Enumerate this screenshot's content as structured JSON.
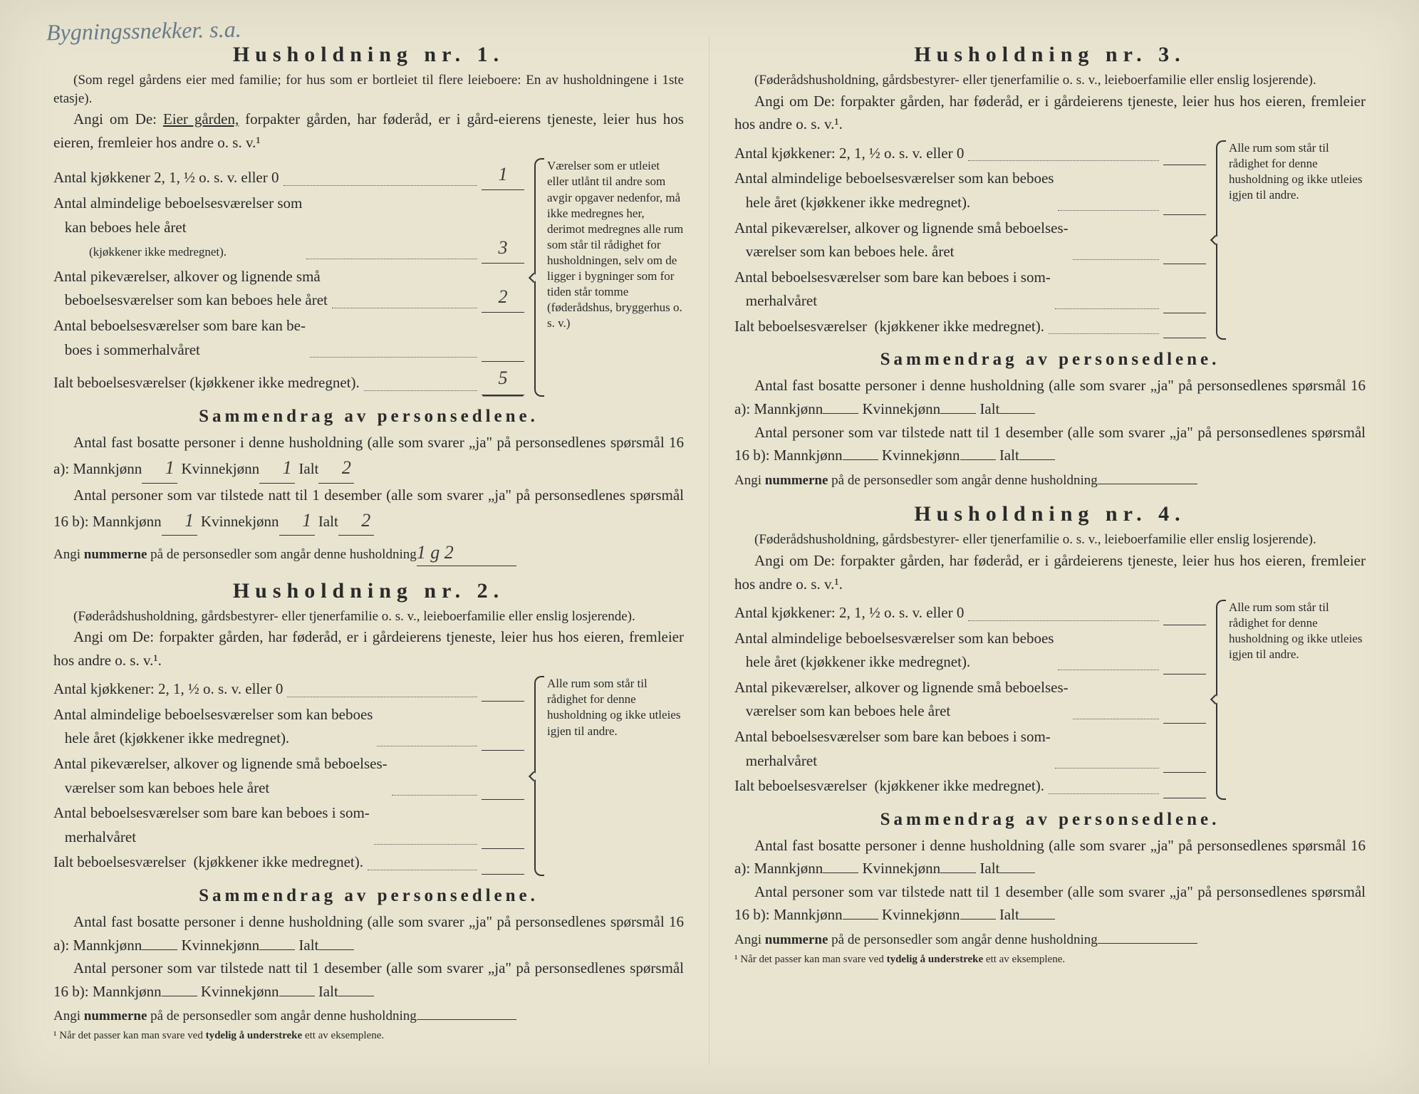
{
  "page_bg": "#e8e4d0",
  "text_color": "#2a2a2a",
  "handwriting_color": "#6b7a8a",
  "top_handwriting": "Bygningssnekker. s.a.",
  "households": [
    {
      "title": "Husholdning nr. 1.",
      "intro": "(Som regel gårdens eier med familie; for hus som er bortleiet til flere leieboere: En av husholdningene i 1ste etasje).",
      "angi_pre": "Angi om De: ",
      "angi_underlined": "Eier gården,",
      "angi_post": " forpakter gården, har føderåd, er i gård-eierens tjeneste, leier hus hos eieren, fremleier hos andre o. s. v.¹",
      "rows": [
        {
          "label": "Antal kjøkkener 2, 1, ½ o. s. v. eller 0",
          "val": "1"
        },
        {
          "label": "Antal almindelige beboelsesværelser som\n   kan beboes hele året",
          "sublabel": "(kjøkkener ikke medregnet).",
          "val": "3"
        },
        {
          "label": "Antal pikeværelser, alkover og lignende små\n   beboelsesværelser som kan beboes hele året",
          "val": "2"
        },
        {
          "label": "Antal beboelsesværelser som bare kan be-\n   boes i sommerhalvåret",
          "val": ""
        },
        {
          "label": "Ialt beboelsesværelser (kjøkkener ikke medregnet).",
          "val": "5",
          "total": true
        }
      ],
      "side_note": "Værelser som er utleiet eller utlånt til andre som avgir opgaver nedenfor, må ikke medregnes her, derimot medregnes alle rum som står til rådighet for husholdningen, selv om de ligger i bygninger som for tiden står tomme (føderådshus, bryggerhus o. s. v.)",
      "summary_title": "Sammendrag av personsedlene.",
      "line_a_pre": "Antal fast bosatte personer i denne husholdning (alle som svarer „ja\" på personsedlenes spørsmål 16 a): Mannkjønn",
      "line_a_m": "1",
      "line_a_k": "1",
      "line_a_i": "2",
      "line_b_pre": "Antal personer som var tilstede natt til 1 desember (alle som svarer „ja\" på personsedlenes spørsmål 16 b): Mannkjønn",
      "line_b_m": "1",
      "line_b_k": "1",
      "line_b_i": "2",
      "angi_num": "Angi nummerne på de personsedler som angår denne husholdning",
      "angi_num_val": "1 g 2",
      "footnote": ""
    },
    {
      "title": "Husholdning nr. 2.",
      "intro": "(Føderådshusholdning, gårdsbestyrer- eller tjenerfamilie o. s. v., leieboerfamilie eller enslig losjerende).",
      "angi_pre": "Angi om De:  forpakter gården, har føderåd, er i gårdeierens tjeneste, leier hus hos eieren, fremleier hos andre o. s. v.¹.",
      "rows": [
        {
          "label": "Antal kjøkkener: 2, 1, ½ o. s. v. eller 0",
          "val": ""
        },
        {
          "label": "Antal almindelige beboelsesværelser som kan beboes\n   hele året (kjøkkener ikke medregnet).",
          "val": ""
        },
        {
          "label": "Antal pikeværelser, alkover og lignende små beboelses-\n   værelser som kan beboes hele året",
          "val": ""
        },
        {
          "label": "Antal beboelsesværelser som bare kan beboes i som-\n   merhalvåret",
          "val": ""
        },
        {
          "label": "Ialt beboelsesværelser  (kjøkkener ikke medregnet).",
          "val": "",
          "total": true
        }
      ],
      "side_note": "Alle rum som står til rådighet for denne husholdning og ikke utleies igjen til andre.",
      "summary_title": "Sammendrag av personsedlene.",
      "line_a_pre": "Antal fast bosatte personer i denne husholdning (alle som svarer „ja\" på personsedlenes spørsmål 16 a): Mannkjønn",
      "line_a_m": "",
      "line_a_k": "",
      "line_a_i": "",
      "line_b_pre": "Antal personer som var tilstede natt til 1 desember (alle som svarer „ja\" på personsedlenes spørsmål 16 b): Mannkjønn",
      "line_b_m": "",
      "line_b_k": "",
      "line_b_i": "",
      "angi_num": "Angi nummerne på de personsedler som angår denne husholdning",
      "angi_num_val": "",
      "footnote": "¹  Når det passer kan man svare ved tydelig å understreke ett av eksemplene."
    },
    {
      "title": "Husholdning nr. 3.",
      "intro": "(Føderådshusholdning, gårdsbestyrer- eller tjenerfamilie o. s. v., leieboerfamilie eller enslig losjerende).",
      "angi_pre": "Angi om De:  forpakter gården, har føderåd, er i gårdeierens tjeneste, leier hus hos eieren, fremleier hos andre o. s. v.¹.",
      "rows": [
        {
          "label": "Antal kjøkkener: 2, 1, ½ o. s. v. eller 0",
          "val": ""
        },
        {
          "label": "Antal almindelige beboelsesværelser som kan beboes\n   hele året (kjøkkener ikke medregnet).",
          "val": ""
        },
        {
          "label": "Antal pikeværelser, alkover og lignende små beboelses-\n   værelser som kan beboes hele. året",
          "val": ""
        },
        {
          "label": "Antal beboelsesværelser som bare kan beboes i som-\n   merhalvåret",
          "val": ""
        },
        {
          "label": "Ialt beboelsesværelser  (kjøkkener ikke medregnet).",
          "val": "",
          "total": true
        }
      ],
      "side_note": "Alle rum som står til rådighet for denne husholdning og ikke utleies igjen til andre.",
      "summary_title": "Sammendrag av personsedlene.",
      "line_a_pre": "Antal fast bosatte personer i denne husholdning (alle som svarer „ja\" på personsedlenes spørsmål 16 a): Mannkjønn",
      "line_a_m": "",
      "line_a_k": "",
      "line_a_i": "",
      "line_b_pre": "Antal personer som var tilstede natt til 1 desember (alle som svarer „ja\" på personsedlenes spørsmål 16 b): Mannkjønn",
      "line_b_m": "",
      "line_b_k": "",
      "line_b_i": "",
      "angi_num": "Angi nummerne på de personsedler som angår denne husholdning",
      "angi_num_val": "",
      "footnote": ""
    },
    {
      "title": "Husholdning nr. 4.",
      "intro": "(Føderådshusholdning, gårdsbestyrer- eller tjenerfamilie o. s. v., leieboerfamilie eller enslig losjerende).",
      "angi_pre": "Angi om De:  forpakter gården, har føderåd, er i gårdeierens tjeneste, leier hus hos eieren, fremleier hos andre o. s. v.¹.",
      "rows": [
        {
          "label": "Antal kjøkkener: 2, 1, ½ o. s. v. eller 0",
          "val": ""
        },
        {
          "label": "Antal almindelige beboelsesværelser som kan beboes\n   hele året (kjøkkener ikke medregnet).",
          "val": ""
        },
        {
          "label": "Antal pikeværelser, alkover og lignende små beboelses-\n   værelser som kan beboes hele året",
          "val": ""
        },
        {
          "label": "Antal beboelsesværelser som bare kan beboes i som-\n   merhalvåret",
          "val": ""
        },
        {
          "label": "Ialt beboelsesværelser  (kjøkkener ikke medregnet).",
          "val": "",
          "total": true
        }
      ],
      "side_note": "Alle rum som står til rådighet for denne husholdning og ikke utleies igjen til andre.",
      "summary_title": "Sammendrag av personsedlene.",
      "line_a_pre": "Antal fast bosatte personer i denne husholdning (alle som svarer „ja\" på personsedlenes spørsmål 16 a): Mannkjønn",
      "line_a_m": "",
      "line_a_k": "",
      "line_a_i": "",
      "line_b_pre": "Antal personer som var tilstede natt til 1 desember (alle som svarer „ja\" på personsedlenes spørsmål 16 b): Mannkjønn",
      "line_b_m": "",
      "line_b_k": "",
      "line_b_i": "",
      "angi_num": "Angi nummerne på de personsedler som angår denne husholdning",
      "angi_num_val": "",
      "footnote": "¹  Når det passer kan man svare ved tydelig å understreke ett av eksemplene."
    }
  ],
  "labels": {
    "kvinne": " Kvinnekjønn",
    "ialt": " Ialt"
  }
}
